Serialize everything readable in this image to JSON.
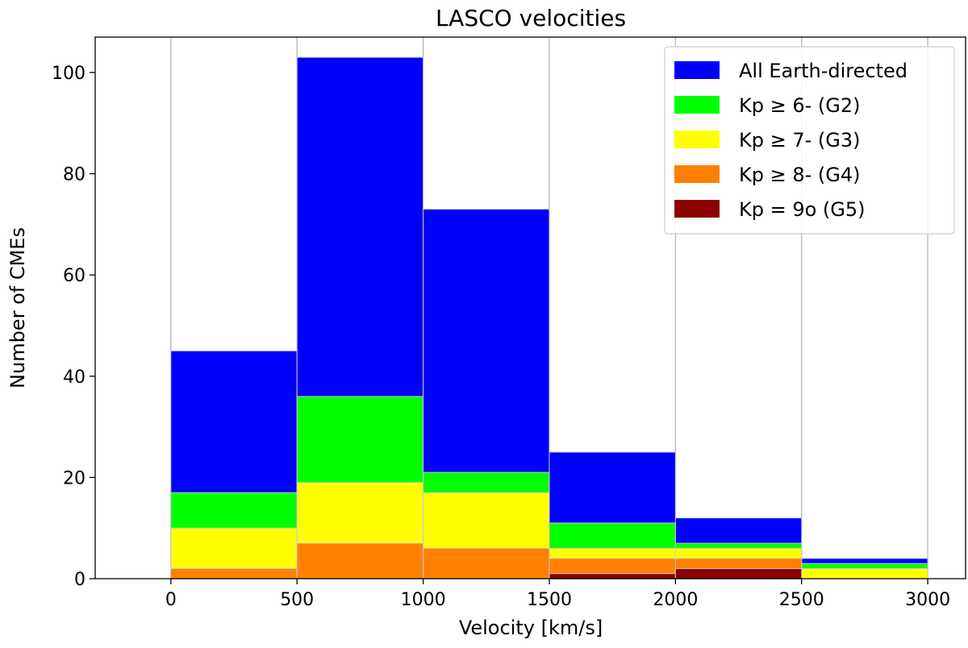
{
  "chart_data": {
    "type": "bar",
    "title": "LASCO velocities",
    "xlabel": "Velocity [km/s]",
    "ylabel": "Number of CMEs",
    "xlim": [
      -300,
      3150
    ],
    "ylim": [
      0,
      107
    ],
    "bin_edges": [
      0,
      500,
      1000,
      1500,
      2000,
      2500,
      3000
    ],
    "x_ticks": [
      0,
      500,
      1000,
      1500,
      2000,
      2500,
      3000
    ],
    "y_ticks": [
      0,
      20,
      40,
      60,
      80,
      100
    ],
    "grid": "vertical",
    "legend_position": "top-right",
    "series": [
      {
        "name": "All Earth-directed",
        "color": "#0000ff",
        "values": [
          45,
          103,
          73,
          25,
          12,
          4
        ]
      },
      {
        "name": "Kp ≥ 6- (G2)",
        "color": "#00ff00",
        "values": [
          17,
          36,
          21,
          11,
          7,
          3
        ]
      },
      {
        "name": "Kp ≥ 7- (G3)",
        "color": "#ffff00",
        "values": [
          10,
          19,
          17,
          6,
          6,
          2
        ]
      },
      {
        "name": "Kp ≥ 8- (G4)",
        "color": "#ff8000",
        "values": [
          2,
          7,
          6,
          4,
          4,
          0
        ]
      },
      {
        "name": "Kp = 9o (G5)",
        "color": "#8b0000",
        "values": [
          0,
          0,
          0,
          1,
          2,
          0
        ]
      }
    ]
  }
}
